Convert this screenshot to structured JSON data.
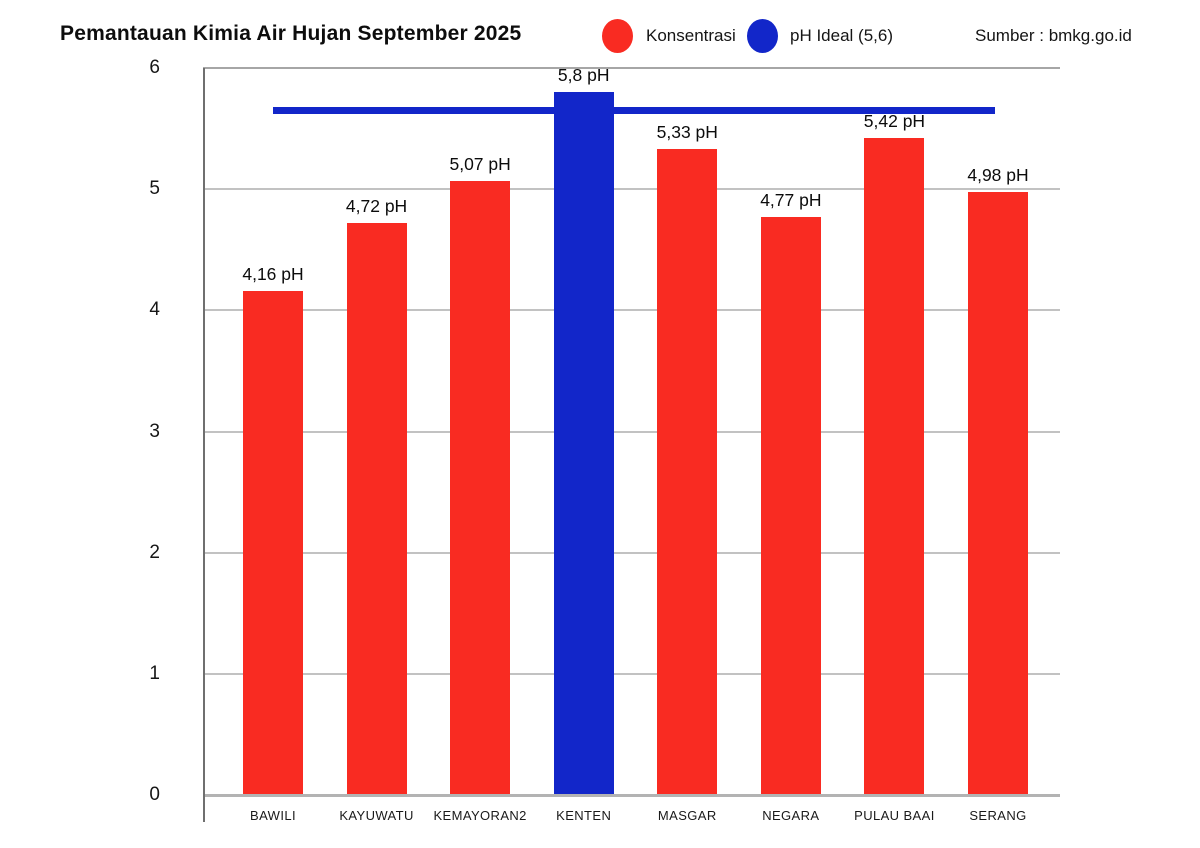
{
  "header": {
    "title": "Pemantauan Kimia Air Hujan September 2025",
    "source": "Sumber : bmkg.go.id"
  },
  "legend": [
    {
      "label": "Konsentrasi",
      "color": "#f92b22"
    },
    {
      "label": "pH Ideal (5,6)",
      "color": "#1226c9"
    }
  ],
  "chart_data": {
    "type": "bar",
    "title": "Pemantauan Kimia Air Hujan September 2025",
    "source": "Sumber : bmkg.go.id",
    "categories": [
      "BAWILI",
      "KAYUWATU",
      "KEMAYORAN2",
      "KENTEN",
      "MASGAR",
      "NEGARA",
      "PULAU BAAI",
      "SERANG"
    ],
    "values": [
      4.16,
      4.72,
      5.07,
      5.8,
      5.33,
      4.77,
      5.42,
      4.98
    ],
    "value_labels": [
      "4,16 pH",
      "4,72 pH",
      "5,07 pH",
      "5,8 pH",
      "5,33 pH",
      "4,77 pH",
      "5,42 pH",
      "4,98 pH"
    ],
    "bar_colors": [
      "#f92b22",
      "#f92b22",
      "#f92b22",
      "#1226c9",
      "#f92b22",
      "#f92b22",
      "#f92b22",
      "#f92b22"
    ],
    "series_colors": {
      "konsentrasi": "#f92b22",
      "ph_ideal": "#1226c9"
    },
    "ideal_line": {
      "label": "pH Ideal (5,6)",
      "nominal_value_label": "5,6",
      "plotted_value": 5.65,
      "color": "#1226c9"
    },
    "xlabel": "",
    "ylabel": "",
    "y_ticks": [
      0,
      1,
      2,
      3,
      4,
      5,
      6
    ],
    "ylim": [
      0,
      6
    ],
    "grid": true,
    "legend_position": "top"
  }
}
